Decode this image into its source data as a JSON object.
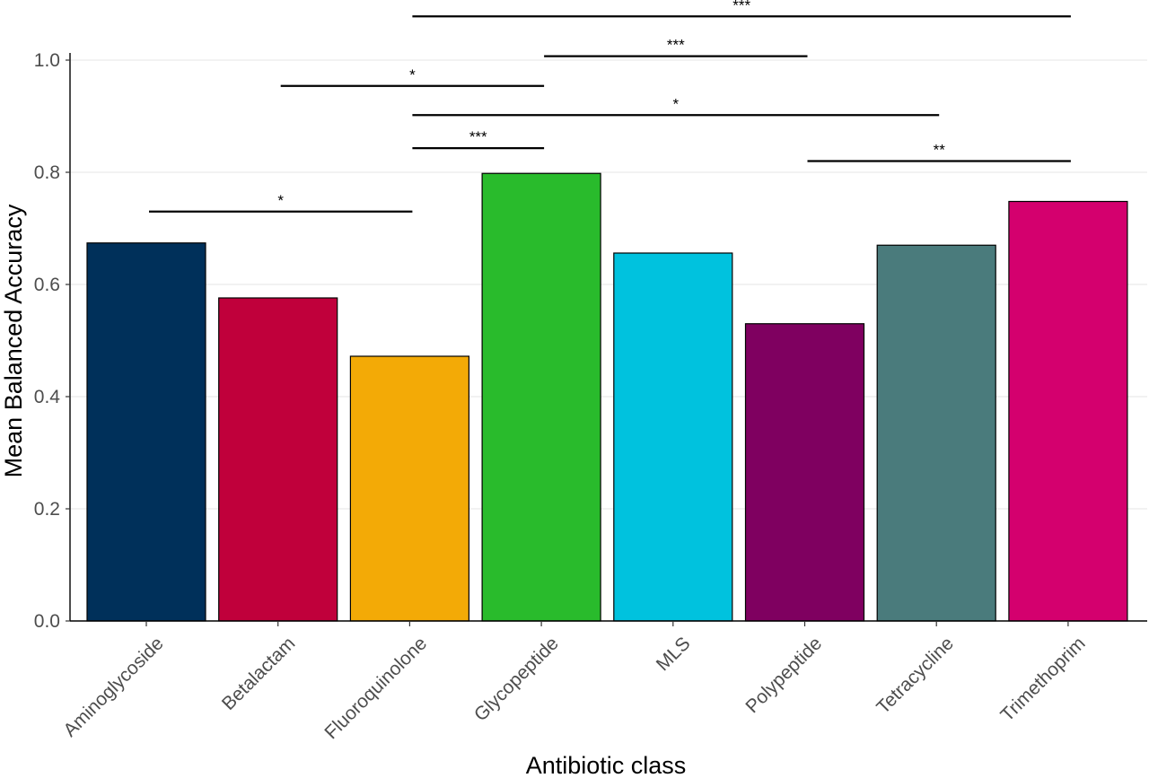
{
  "chart_data": {
    "type": "bar",
    "xlabel": "Antibiotic class",
    "ylabel": "Mean Balanced Accuracy",
    "ylim": [
      0,
      1.0
    ],
    "yticks": [
      0.0,
      0.2,
      0.4,
      0.6,
      0.8,
      1.0
    ],
    "ytick_labels": [
      "0.0",
      "0.2",
      "0.4",
      "0.6",
      "0.8",
      "1.0"
    ],
    "grid": "horizontal",
    "categories": [
      "Aminoglycoside",
      "Betalactam",
      "Fluoroquinolone",
      "Glycopeptide",
      "MLS",
      "Polypeptide",
      "Tetracycline",
      "Trimethoprim"
    ],
    "values": [
      0.674,
      0.576,
      0.472,
      0.798,
      0.656,
      0.53,
      0.67,
      0.748
    ],
    "colors": [
      "#00305a",
      "#c0003b",
      "#f3aa06",
      "#29bb2c",
      "#00c2de",
      "#7f0060",
      "#4a7b7c",
      "#d4006e"
    ],
    "significance": [
      {
        "from": 0,
        "to": 2,
        "y": 0.73,
        "label": "*"
      },
      {
        "from": 2,
        "to": 3,
        "y": 0.843,
        "label": "***"
      },
      {
        "from": 2,
        "to": 6,
        "y": 0.902,
        "label": "*"
      },
      {
        "from": 1,
        "to": 3,
        "y": 0.954,
        "label": "*"
      },
      {
        "from": 3,
        "to": 5,
        "y": 1.007,
        "label": "***"
      },
      {
        "from": 2,
        "to": 7,
        "y": 1.078,
        "label": "***"
      },
      {
        "from": 5,
        "to": 7,
        "y": 0.82,
        "label": "**"
      }
    ]
  }
}
